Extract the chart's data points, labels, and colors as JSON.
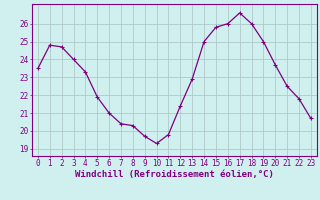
{
  "x": [
    0,
    1,
    2,
    3,
    4,
    5,
    6,
    7,
    8,
    9,
    10,
    11,
    12,
    13,
    14,
    15,
    16,
    17,
    18,
    19,
    20,
    21,
    22,
    23
  ],
  "y": [
    23.5,
    24.8,
    24.7,
    24.0,
    23.3,
    21.9,
    21.0,
    20.4,
    20.3,
    19.7,
    19.3,
    19.8,
    21.4,
    22.9,
    25.0,
    25.8,
    26.0,
    26.6,
    26.0,
    25.0,
    23.7,
    22.5,
    21.8,
    20.7
  ],
  "line_color": "#800080",
  "marker": "P",
  "marker_size": 2.8,
  "bg_color": "#cff0ee",
  "grid_color": "#b0c8c8",
  "xlabel": "Windchill (Refroidissement éolien,°C)",
  "ylabel": "",
  "ylim": [
    18.6,
    27.1
  ],
  "xlim": [
    -0.5,
    23.5
  ],
  "yticks": [
    19,
    20,
    21,
    22,
    23,
    24,
    25,
    26
  ],
  "xticks": [
    0,
    1,
    2,
    3,
    4,
    5,
    6,
    7,
    8,
    9,
    10,
    11,
    12,
    13,
    14,
    15,
    16,
    17,
    18,
    19,
    20,
    21,
    22,
    23
  ],
  "tick_fontsize": 5.5,
  "xlabel_fontsize": 6.5,
  "label_color": "#800080",
  "spine_color": "#800080",
  "linewidth": 0.9
}
